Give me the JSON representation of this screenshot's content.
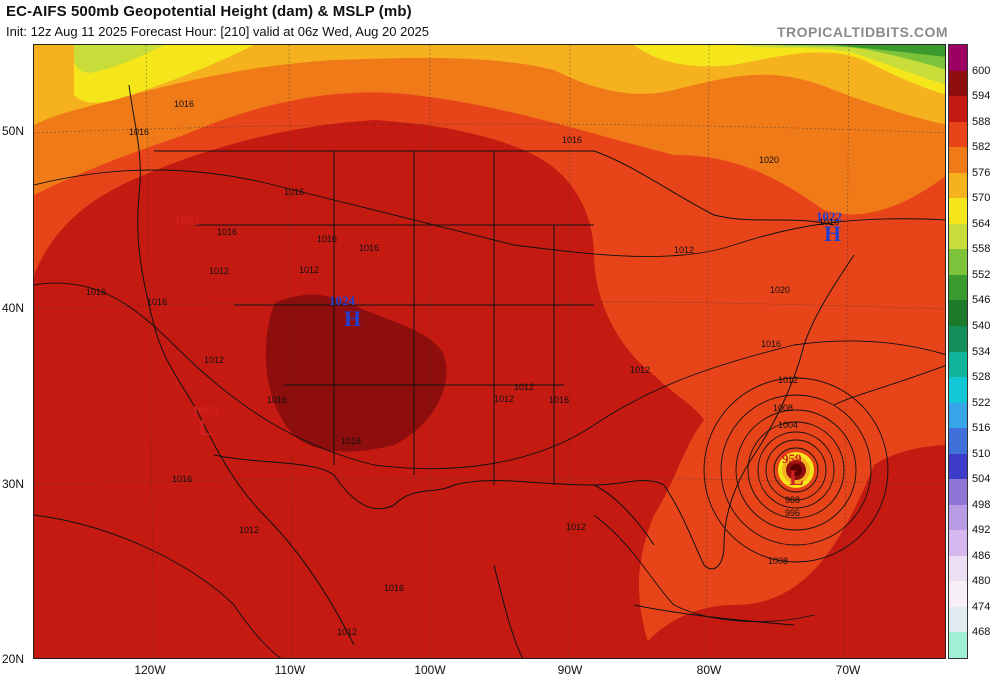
{
  "header": {
    "title": "EC-AIFS 500mb Geopotential Height (dam) & MSLP (mb)",
    "subtitle": "Init: 12z Aug 11 2025   Forecast Hour: [210]   valid at 06z Wed, Aug 20 2025",
    "brand": "TROPICALTIDBITS.COM"
  },
  "axes": {
    "lat_labels": [
      "50N",
      "40N",
      "30N",
      "20N"
    ],
    "lon_labels": [
      "120W",
      "110W",
      "100W",
      "90W",
      "80W",
      "70W"
    ]
  },
  "colorbar": {
    "labels": [
      "600",
      "594",
      "588",
      "582",
      "576",
      "570",
      "564",
      "558",
      "552",
      "546",
      "540",
      "534",
      "528",
      "522",
      "516",
      "510",
      "504",
      "498",
      "492",
      "486",
      "480",
      "474",
      "468"
    ],
    "colors": [
      "#9c0060",
      "#8e0d0d",
      "#c41a12",
      "#e8441a",
      "#f07a18",
      "#f5b21e",
      "#f5e61c",
      "#c8dd3a",
      "#7cc23a",
      "#3a9a2e",
      "#1c7a2a",
      "#138f5c",
      "#12b39b",
      "#12c8d6",
      "#36a6e8",
      "#3f6fd8",
      "#3c3cc8",
      "#8f76d6",
      "#b79be4",
      "#d6b8ee",
      "#ecdff4",
      "#f6eff6",
      "#e0ecf0",
      "#9ff0d6"
    ]
  },
  "map": {
    "pressure_systems": [
      {
        "letter": "H",
        "value": "1024",
        "color": "#2040d0"
      },
      {
        "letter": "H",
        "value": "1022",
        "color": "#2040d0"
      },
      {
        "letter": "L",
        "value": "959",
        "color": "#d02020"
      },
      {
        "letter": "L",
        "value": "1009",
        "color": "#d02020"
      },
      {
        "letter": "",
        "value": "1003",
        "color": "#d02020"
      }
    ],
    "isobar_labels": [
      "1016",
      "1016",
      "1016",
      "1016",
      "1016",
      "1016",
      "1012",
      "1012",
      "1016",
      "1016",
      "1012",
      "1016",
      "1016",
      "1012",
      "1016",
      "1012",
      "1012",
      "1012",
      "1012",
      "1016",
      "1012",
      "1016",
      "1012",
      "1016",
      "1020",
      "1020",
      "1016",
      "1012",
      "1008",
      "1004",
      "988",
      "996",
      "1008",
      "1016"
    ]
  }
}
